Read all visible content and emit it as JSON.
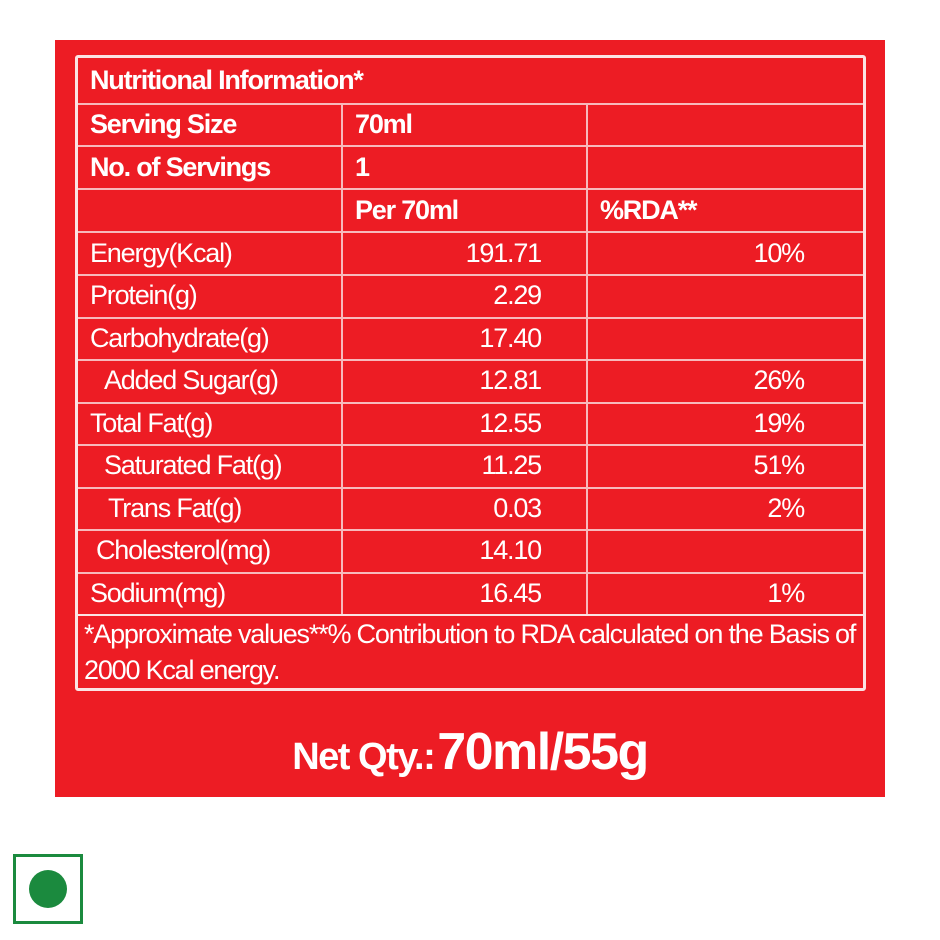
{
  "label": {
    "title": "Nutritional Information*",
    "serving_size_label": "Serving Size",
    "serving_size_value": "70ml",
    "servings_label": "No. of Servings",
    "servings_value": "1",
    "col_per": "Per 70ml",
    "col_rda": "%RDA**",
    "rows": [
      {
        "name": "Energy(Kcal)",
        "value": "191.71",
        "rda": "10%"
      },
      {
        "name": "Protein(g)",
        "value": "2.29",
        "rda": ""
      },
      {
        "name": "Carbohydrate(g)",
        "value": "17.40",
        "rda": ""
      },
      {
        "name": "Added Sugar(g)",
        "value": "12.81",
        "rda": "26%"
      },
      {
        "name": "Total Fat(g)",
        "value": "12.55",
        "rda": "19%"
      },
      {
        "name": "Saturated Fat(g)",
        "value": "11.25",
        "rda": "51%"
      },
      {
        "name": "Trans Fat(g)",
        "value": "0.03",
        "rda": "2%"
      },
      {
        "name": "Cholesterol(mg)",
        "value": "14.10",
        "rda": ""
      },
      {
        "name": "Sodium(mg)",
        "value": "16.45",
        "rda": "1%"
      }
    ],
    "footnote": "*Approximate values**% Contribution to RDA calculated on the Basis of 2000 Kcal energy."
  },
  "net_qty": {
    "label": "Net Qty.:",
    "value": "70ml/55g"
  },
  "colors": {
    "panel": "#ed1c24",
    "veg_mark": "#1b8a3e"
  },
  "icons": {
    "veg_mark": "veg-symbol-icon"
  }
}
